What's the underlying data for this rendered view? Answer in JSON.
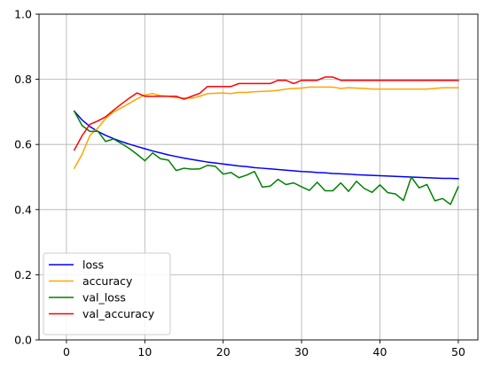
{
  "chart_data": {
    "type": "line",
    "title": "",
    "xlabel": "",
    "ylabel": "",
    "xlim": [
      -3.5,
      52.5
    ],
    "ylim": [
      0,
      1
    ],
    "xticks": [
      0,
      10,
      20,
      30,
      40,
      50
    ],
    "yticks": [
      0.0,
      0.2,
      0.4,
      0.6,
      0.8,
      1.0
    ],
    "ytick_labels": [
      "0.0",
      "0.2",
      "0.4",
      "0.6",
      "0.8",
      "1.0"
    ],
    "grid": true,
    "legend_position": "lower-left",
    "x": [
      1,
      2,
      3,
      4,
      5,
      6,
      7,
      8,
      9,
      10,
      11,
      12,
      13,
      14,
      15,
      16,
      17,
      18,
      19,
      20,
      21,
      22,
      23,
      24,
      25,
      26,
      27,
      28,
      29,
      30,
      31,
      32,
      33,
      34,
      35,
      36,
      37,
      38,
      39,
      40,
      41,
      42,
      43,
      44,
      45,
      46,
      47,
      48,
      49,
      50
    ],
    "series": [
      {
        "name": "loss",
        "color": "#0000ff",
        "values": [
          0.702,
          0.675,
          0.655,
          0.64,
          0.628,
          0.618,
          0.609,
          0.601,
          0.594,
          0.587,
          0.58,
          0.574,
          0.568,
          0.563,
          0.558,
          0.554,
          0.55,
          0.546,
          0.543,
          0.54,
          0.537,
          0.534,
          0.532,
          0.529,
          0.527,
          0.525,
          0.523,
          0.521,
          0.519,
          0.517,
          0.516,
          0.514,
          0.513,
          0.511,
          0.51,
          0.509,
          0.507,
          0.506,
          0.505,
          0.504,
          0.503,
          0.502,
          0.501,
          0.5,
          0.499,
          0.498,
          0.497,
          0.496,
          0.496,
          0.495
        ]
      },
      {
        "name": "accuracy",
        "color": "#ffa500",
        "values": [
          0.527,
          0.57,
          0.628,
          0.65,
          0.68,
          0.7,
          0.712,
          0.726,
          0.74,
          0.752,
          0.756,
          0.75,
          0.748,
          0.744,
          0.743,
          0.742,
          0.748,
          0.756,
          0.757,
          0.758,
          0.756,
          0.76,
          0.76,
          0.762,
          0.763,
          0.764,
          0.766,
          0.77,
          0.772,
          0.773,
          0.776,
          0.776,
          0.776,
          0.776,
          0.772,
          0.774,
          0.773,
          0.772,
          0.77,
          0.77,
          0.77,
          0.77,
          0.77,
          0.77,
          0.77,
          0.77,
          0.772,
          0.774,
          0.774,
          0.774
        ]
      },
      {
        "name": "val_loss",
        "color": "#008000",
        "values": [
          0.702,
          0.658,
          0.64,
          0.641,
          0.609,
          0.617,
          0.603,
          0.588,
          0.57,
          0.55,
          0.574,
          0.556,
          0.552,
          0.52,
          0.527,
          0.524,
          0.525,
          0.536,
          0.533,
          0.509,
          0.514,
          0.498,
          0.506,
          0.517,
          0.469,
          0.472,
          0.493,
          0.477,
          0.482,
          0.47,
          0.459,
          0.484,
          0.458,
          0.458,
          0.482,
          0.456,
          0.487,
          0.465,
          0.453,
          0.476,
          0.452,
          0.448,
          0.428,
          0.5,
          0.467,
          0.477,
          0.427,
          0.434,
          0.416,
          0.47
        ]
      },
      {
        "name": "val_accuracy",
        "color": "#ff0000",
        "values": [
          0.583,
          0.627,
          0.662,
          0.672,
          0.685,
          0.705,
          0.724,
          0.742,
          0.758,
          0.748,
          0.748,
          0.748,
          0.748,
          0.748,
          0.739,
          0.748,
          0.757,
          0.778,
          0.778,
          0.778,
          0.778,
          0.787,
          0.787,
          0.787,
          0.787,
          0.787,
          0.797,
          0.797,
          0.787,
          0.797,
          0.797,
          0.797,
          0.807,
          0.807,
          0.797,
          0.797,
          0.797,
          0.797,
          0.797,
          0.797,
          0.797,
          0.797,
          0.797,
          0.797,
          0.797,
          0.797,
          0.797,
          0.797,
          0.797,
          0.797
        ]
      }
    ]
  }
}
